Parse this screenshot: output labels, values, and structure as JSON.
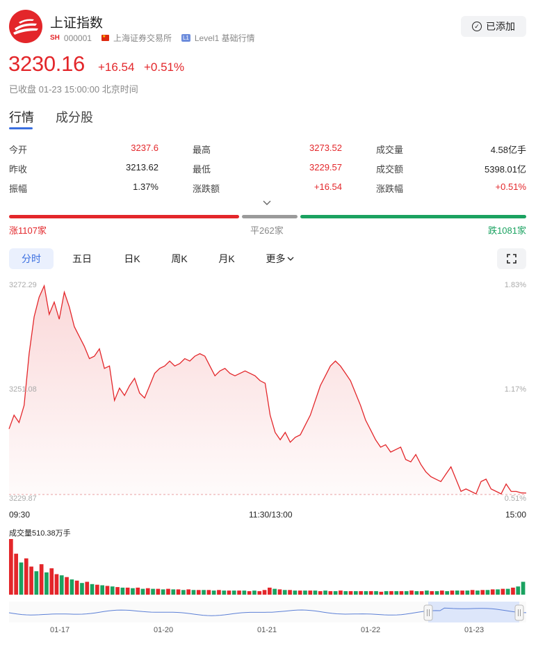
{
  "header": {
    "title": "上证指数",
    "market_badge": "SH",
    "code": "000001",
    "exchange": "上海证券交易所",
    "level_badge": "L1",
    "level_text": "Level1 基础行情",
    "added_label": "已添加"
  },
  "quote": {
    "price": "3230.16",
    "change": "+16.54",
    "change_pct": "+0.51%",
    "status": "已收盘 01-23 15:00:00 北京时间"
  },
  "tabs": {
    "market": "行情",
    "constituents": "成分股"
  },
  "stats": {
    "open_label": "今开",
    "open": "3237.6",
    "high_label": "最高",
    "high": "3273.52",
    "volume_label": "成交量",
    "volume": "4.58亿手",
    "prev_close_label": "昨收",
    "prev_close": "3213.62",
    "low_label": "最低",
    "low": "3229.57",
    "turnover_label": "成交额",
    "turnover": "5398.01亿",
    "amplitude_label": "振幅",
    "amplitude": "1.37%",
    "change_amt_label": "涨跌额",
    "change_amt": "+16.54",
    "change_pct_label": "涨跌幅",
    "change_pct": "+0.51%"
  },
  "breadth": {
    "up": "涨1107家",
    "flat": "平262家",
    "down": "跌1081家",
    "up_count": 1107,
    "flat_count": 262,
    "down_count": 1081
  },
  "chart_tabs": [
    "分时",
    "五日",
    "日K",
    "周K",
    "月K",
    "更多"
  ],
  "chart_data": {
    "type": "line",
    "y_left_ticks": [
      "3272.29",
      "3251.08",
      "3229.87"
    ],
    "y_right_ticks": [
      "1.83%",
      "1.17%",
      "0.51%"
    ],
    "x_ticks": [
      "09:30",
      "11:30/13:00",
      "15:00"
    ],
    "ylim": [
      3229.87,
      3272.29
    ],
    "reference": 3229.87,
    "values": [
      3243.2,
      3246.0,
      3244.5,
      3248.0,
      3258.5,
      3266.0,
      3270.0,
      3272.3,
      3266.5,
      3269.0,
      3265.5,
      3271.0,
      3268.0,
      3264.0,
      3262.0,
      3260.0,
      3257.5,
      3258.0,
      3259.5,
      3255.5,
      3256.0,
      3249.0,
      3251.5,
      3250.0,
      3252.0,
      3253.5,
      3250.5,
      3249.5,
      3252.0,
      3254.5,
      3255.5,
      3256.0,
      3257.0,
      3256.0,
      3256.5,
      3257.5,
      3257.0,
      3258.0,
      3258.5,
      3258.0,
      3256.0,
      3254.0,
      3255.0,
      3255.5,
      3254.5,
      3254.0,
      3254.5,
      3255.0,
      3254.5,
      3254.0,
      3253.0,
      3252.5,
      3246.0,
      3242.5,
      3241.0,
      3242.5,
      3240.5,
      3241.5,
      3242.0,
      3244.0,
      3246.0,
      3249.0,
      3252.0,
      3254.0,
      3256.0,
      3257.0,
      3256.0,
      3254.5,
      3253.0,
      3250.5,
      3248.0,
      3245.0,
      3243.0,
      3241.0,
      3239.5,
      3240.0,
      3238.5,
      3239.0,
      3239.5,
      3237.0,
      3236.5,
      3238.0,
      3236.0,
      3234.5,
      3233.5,
      3233.0,
      3232.5,
      3234.0,
      3235.5,
      3233.0,
      3230.5,
      3231.0,
      3230.5,
      3230.0,
      3232.5,
      3233.0,
      3231.0,
      3230.5,
      3230.0,
      3232.0,
      3230.5,
      3230.5,
      3230.2,
      3230.16
    ],
    "volume_label": "成交量510.38万手",
    "volume": [
      {
        "v": 95,
        "up": 1
      },
      {
        "v": 70,
        "up": 1
      },
      {
        "v": 55,
        "up": 0
      },
      {
        "v": 62,
        "up": 1
      },
      {
        "v": 48,
        "up": 1
      },
      {
        "v": 40,
        "up": 0
      },
      {
        "v": 52,
        "up": 1
      },
      {
        "v": 38,
        "up": 0
      },
      {
        "v": 45,
        "up": 1
      },
      {
        "v": 35,
        "up": 1
      },
      {
        "v": 33,
        "up": 0
      },
      {
        "v": 30,
        "up": 1
      },
      {
        "v": 26,
        "up": 0
      },
      {
        "v": 24,
        "up": 1
      },
      {
        "v": 20,
        "up": 0
      },
      {
        "v": 22,
        "up": 1
      },
      {
        "v": 18,
        "up": 0
      },
      {
        "v": 17,
        "up": 1
      },
      {
        "v": 16,
        "up": 0
      },
      {
        "v": 15,
        "up": 1
      },
      {
        "v": 14,
        "up": 0
      },
      {
        "v": 13,
        "up": 1
      },
      {
        "v": 12,
        "up": 0
      },
      {
        "v": 12,
        "up": 1
      },
      {
        "v": 11,
        "up": 0
      },
      {
        "v": 12,
        "up": 1
      },
      {
        "v": 10,
        "up": 0
      },
      {
        "v": 11,
        "up": 1
      },
      {
        "v": 10,
        "up": 0
      },
      {
        "v": 10,
        "up": 1
      },
      {
        "v": 9,
        "up": 0
      },
      {
        "v": 10,
        "up": 1
      },
      {
        "v": 9,
        "up": 0
      },
      {
        "v": 9,
        "up": 1
      },
      {
        "v": 8,
        "up": 0
      },
      {
        "v": 9,
        "up": 1
      },
      {
        "v": 8,
        "up": 0
      },
      {
        "v": 8,
        "up": 1
      },
      {
        "v": 8,
        "up": 0
      },
      {
        "v": 8,
        "up": 1
      },
      {
        "v": 7,
        "up": 0
      },
      {
        "v": 8,
        "up": 1
      },
      {
        "v": 7,
        "up": 0
      },
      {
        "v": 7,
        "up": 1
      },
      {
        "v": 7,
        "up": 0
      },
      {
        "v": 7,
        "up": 1
      },
      {
        "v": 7,
        "up": 0
      },
      {
        "v": 6,
        "up": 1
      },
      {
        "v": 7,
        "up": 0
      },
      {
        "v": 6,
        "up": 1
      },
      {
        "v": 8,
        "up": 1
      },
      {
        "v": 12,
        "up": 1
      },
      {
        "v": 10,
        "up": 0
      },
      {
        "v": 9,
        "up": 1
      },
      {
        "v": 8,
        "up": 0
      },
      {
        "v": 8,
        "up": 1
      },
      {
        "v": 7,
        "up": 0
      },
      {
        "v": 7,
        "up": 1
      },
      {
        "v": 7,
        "up": 0
      },
      {
        "v": 7,
        "up": 1
      },
      {
        "v": 7,
        "up": 0
      },
      {
        "v": 6,
        "up": 1
      },
      {
        "v": 7,
        "up": 0
      },
      {
        "v": 6,
        "up": 1
      },
      {
        "v": 6,
        "up": 0
      },
      {
        "v": 7,
        "up": 1
      },
      {
        "v": 6,
        "up": 0
      },
      {
        "v": 6,
        "up": 1
      },
      {
        "v": 6,
        "up": 0
      },
      {
        "v": 6,
        "up": 1
      },
      {
        "v": 6,
        "up": 0
      },
      {
        "v": 6,
        "up": 1
      },
      {
        "v": 6,
        "up": 0
      },
      {
        "v": 5,
        "up": 1
      },
      {
        "v": 6,
        "up": 0
      },
      {
        "v": 6,
        "up": 1
      },
      {
        "v": 6,
        "up": 0
      },
      {
        "v": 6,
        "up": 1
      },
      {
        "v": 6,
        "up": 0
      },
      {
        "v": 7,
        "up": 1
      },
      {
        "v": 6,
        "up": 0
      },
      {
        "v": 6,
        "up": 1
      },
      {
        "v": 7,
        "up": 0
      },
      {
        "v": 6,
        "up": 1
      },
      {
        "v": 6,
        "up": 0
      },
      {
        "v": 7,
        "up": 1
      },
      {
        "v": 6,
        "up": 0
      },
      {
        "v": 7,
        "up": 1
      },
      {
        "v": 7,
        "up": 0
      },
      {
        "v": 7,
        "up": 1
      },
      {
        "v": 7,
        "up": 0
      },
      {
        "v": 8,
        "up": 1
      },
      {
        "v": 7,
        "up": 0
      },
      {
        "v": 8,
        "up": 1
      },
      {
        "v": 8,
        "up": 0
      },
      {
        "v": 9,
        "up": 1
      },
      {
        "v": 9,
        "up": 0
      },
      {
        "v": 10,
        "up": 1
      },
      {
        "v": 10,
        "up": 0
      },
      {
        "v": 12,
        "up": 1
      },
      {
        "v": 14,
        "up": 0
      },
      {
        "v": 22,
        "up": 0
      }
    ],
    "navigator_dates": [
      "01-17",
      "01-20",
      "01-21",
      "01-22",
      "01-23"
    ]
  },
  "colors": {
    "up": "#e3262a",
    "down": "#1aa260",
    "flat": "#9a9a9a",
    "accent": "#3b6fe0",
    "nav_line": "#5b7fd6"
  }
}
